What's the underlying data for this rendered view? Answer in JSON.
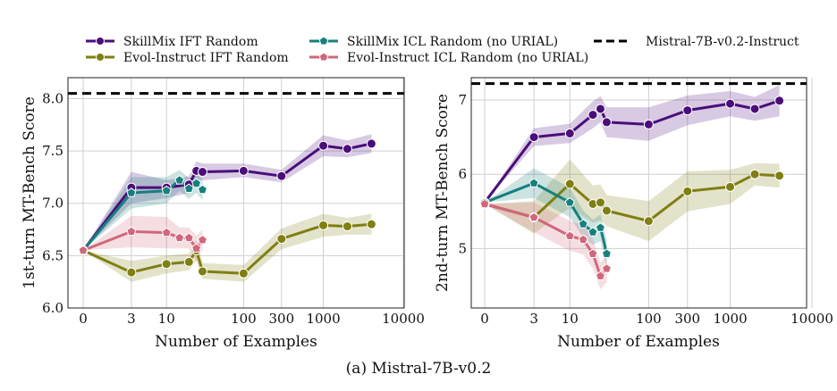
{
  "caption": "(a) Mistral-7B-v0.2",
  "legend": [
    {
      "label": "SkillMix IFT Random",
      "color": "#4b0d7a",
      "marker": "circle"
    },
    {
      "label": "Evol-Instruct IFT Random",
      "color": "#7f7f12",
      "marker": "circle"
    },
    {
      "label": "SkillMix ICL Random (no URIAL)",
      "color": "#16807d",
      "marker": "pentagon"
    },
    {
      "label": "Evol-Instruct ICL Random (no URIAL)",
      "color": "#d0677c",
      "marker": "pentagon"
    },
    {
      "label": "Mistral-7B-v0.2-Instruct",
      "color": "#000000",
      "marker": "dashed-line"
    }
  ],
  "chart_data": [
    {
      "type": "line",
      "xlabel": "Number of Examples",
      "ylabel": "1st-turn MT-Bench Score",
      "xscale": "symlog",
      "xticks": [
        "0",
        "3",
        "10",
        "100",
        "300",
        "1000",
        "10000"
      ],
      "ylim": [
        6.0,
        8.2
      ],
      "yticks": [
        "6.0",
        "6.5",
        "7.0",
        "7.5",
        "8.0"
      ],
      "baseline": {
        "name": "Mistral-7B-v0.2-Instruct",
        "value": 8.05
      },
      "series": [
        {
          "name": "SkillMix IFT Random",
          "x": [
            0,
            3,
            10,
            20,
            25,
            30,
            100,
            300,
            1000,
            2000,
            4000
          ],
          "y": [
            6.55,
            7.15,
            7.15,
            7.18,
            7.31,
            7.3,
            7.31,
            7.26,
            7.55,
            7.52,
            7.57
          ],
          "lo": [
            6.55,
            7.0,
            7.05,
            7.1,
            7.22,
            7.22,
            7.25,
            7.2,
            7.45,
            7.44,
            7.48
          ],
          "hi": [
            6.55,
            7.3,
            7.22,
            7.26,
            7.4,
            7.38,
            7.38,
            7.32,
            7.65,
            7.6,
            7.66
          ]
        },
        {
          "name": "Evol-Instruct IFT Random",
          "x": [
            0,
            3,
            10,
            20,
            25,
            30,
            100,
            300,
            1000,
            2000,
            4000
          ],
          "y": [
            6.55,
            6.34,
            6.42,
            6.44,
            6.55,
            6.35,
            6.33,
            6.66,
            6.79,
            6.78,
            6.8
          ],
          "lo": [
            6.55,
            6.25,
            6.33,
            6.36,
            6.45,
            6.28,
            6.25,
            6.56,
            6.68,
            6.7,
            6.7
          ],
          "hi": [
            6.55,
            6.45,
            6.5,
            6.52,
            6.65,
            6.43,
            6.41,
            6.76,
            6.9,
            6.86,
            6.9
          ]
        },
        {
          "name": "SkillMix ICL Random (no URIAL)",
          "x": [
            0,
            3,
            10,
            15,
            20,
            25,
            30
          ],
          "y": [
            6.55,
            7.1,
            7.12,
            7.22,
            7.14,
            7.19,
            7.13
          ],
          "lo": [
            6.55,
            6.95,
            7.0,
            7.12,
            7.04,
            7.1,
            7.03
          ],
          "hi": [
            6.55,
            7.25,
            7.25,
            7.32,
            7.24,
            7.28,
            7.23
          ]
        },
        {
          "name": "Evol-Instruct ICL Random (no URIAL)",
          "x": [
            0,
            3,
            10,
            15,
            20,
            25,
            30
          ],
          "y": [
            6.55,
            6.73,
            6.72,
            6.67,
            6.67,
            6.57,
            6.65
          ],
          "lo": [
            6.55,
            6.58,
            6.57,
            6.57,
            6.57,
            6.45,
            6.55
          ],
          "hi": [
            6.55,
            6.88,
            6.87,
            6.77,
            6.77,
            6.69,
            6.75
          ]
        }
      ]
    },
    {
      "type": "line",
      "xlabel": "Number of Examples",
      "ylabel": "2nd-turn MT-Bench Score",
      "xscale": "symlog",
      "xticks": [
        "0",
        "3",
        "10",
        "100",
        "300",
        "1000",
        "10000"
      ],
      "ylim": [
        4.2,
        7.3
      ],
      "yticks": [
        "5",
        "6",
        "7"
      ],
      "baseline": {
        "name": "Mistral-7B-v0.2-Instruct",
        "value": 7.22
      },
      "series": [
        {
          "name": "SkillMix IFT Random",
          "x": [
            0,
            3,
            10,
            20,
            25,
            30,
            100,
            300,
            1000,
            2000,
            4000
          ],
          "y": [
            5.62,
            6.5,
            6.55,
            6.8,
            6.88,
            6.7,
            6.67,
            6.86,
            6.95,
            6.88,
            6.99
          ],
          "lo": [
            5.62,
            6.38,
            6.42,
            6.62,
            6.7,
            6.5,
            6.45,
            6.66,
            6.78,
            6.72,
            6.78
          ],
          "hi": [
            5.62,
            6.62,
            6.68,
            6.98,
            7.05,
            6.9,
            6.9,
            7.06,
            7.12,
            7.04,
            7.2
          ]
        },
        {
          "name": "Evol-Instruct IFT Random",
          "x": [
            0,
            3,
            10,
            20,
            25,
            30,
            100,
            300,
            1000,
            2000,
            4000
          ],
          "y": [
            5.6,
            5.42,
            5.87,
            5.6,
            5.62,
            5.51,
            5.37,
            5.77,
            5.83,
            6.0,
            5.98
          ],
          "lo": [
            5.6,
            5.2,
            5.55,
            5.35,
            5.38,
            5.3,
            5.1,
            5.5,
            5.6,
            5.85,
            5.82
          ],
          "hi": [
            5.6,
            5.64,
            6.2,
            5.85,
            5.86,
            5.72,
            5.64,
            6.04,
            6.06,
            6.15,
            6.14
          ]
        },
        {
          "name": "SkillMix ICL Random (no URIAL)",
          "x": [
            0,
            3,
            10,
            15,
            20,
            25,
            30
          ],
          "y": [
            5.62,
            5.88,
            5.62,
            5.33,
            5.22,
            5.28,
            4.93
          ],
          "lo": [
            5.62,
            5.68,
            5.42,
            5.15,
            5.05,
            5.1,
            4.75
          ],
          "hi": [
            5.62,
            6.08,
            5.82,
            5.51,
            5.39,
            5.46,
            5.11
          ]
        },
        {
          "name": "Evol-Instruct ICL Random (no URIAL)",
          "x": [
            0,
            3,
            10,
            15,
            20,
            25,
            30
          ],
          "y": [
            5.6,
            5.42,
            5.17,
            5.12,
            4.93,
            4.63,
            4.73
          ],
          "lo": [
            5.6,
            5.22,
            4.97,
            4.92,
            4.73,
            4.45,
            4.55
          ],
          "hi": [
            5.6,
            5.62,
            5.37,
            5.32,
            5.13,
            4.81,
            4.91
          ]
        }
      ]
    }
  ]
}
